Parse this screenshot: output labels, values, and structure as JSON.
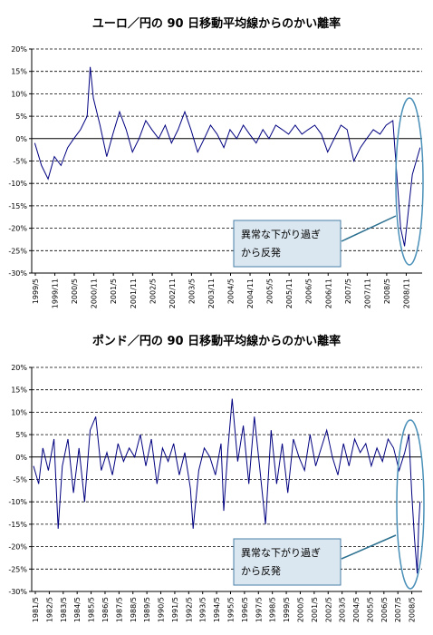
{
  "chart_data": [
    {
      "type": "line",
      "title": "ユーロ／円の 90 日移動平均線からのかい離率",
      "ylim": [
        -30,
        20
      ],
      "y_ticks": [
        20,
        15,
        10,
        5,
        0,
        -5,
        -10,
        -15,
        -20,
        -25,
        -30
      ],
      "y_tick_labels": [
        "20%",
        "15%",
        "10%",
        "5%",
        "0%",
        "-5%",
        "-10%",
        "-15%",
        "-20%",
        "-25%",
        "-30%"
      ],
      "grid": "horizontal dashed",
      "line_color": "#000080",
      "x_tick_labels": [
        "1999/5",
        "1999/11",
        "2000/5",
        "2000/11",
        "2001/5",
        "2001/11",
        "2002/5",
        "2002/11",
        "2003/5",
        "2003/11",
        "2004/5",
        "2004/11",
        "2005/5",
        "2005/11",
        "2006/5",
        "2006/11",
        "2007/5",
        "2007/11",
        "2008/5",
        "2008/11"
      ],
      "x": [
        1999.33,
        1999.5,
        1999.67,
        1999.83,
        2000.0,
        2000.17,
        2000.33,
        2000.5,
        2000.67,
        2000.75,
        2000.83,
        2001.0,
        2001.17,
        2001.33,
        2001.5,
        2001.67,
        2001.83,
        2002.0,
        2002.17,
        2002.33,
        2002.5,
        2002.67,
        2002.83,
        2003.0,
        2003.17,
        2003.33,
        2003.5,
        2003.67,
        2003.83,
        2004.0,
        2004.17,
        2004.33,
        2004.5,
        2004.67,
        2004.83,
        2005.0,
        2005.17,
        2005.33,
        2005.5,
        2005.67,
        2005.83,
        2006.0,
        2006.17,
        2006.33,
        2006.5,
        2006.67,
        2006.83,
        2007.0,
        2007.17,
        2007.33,
        2007.5,
        2007.67,
        2007.83,
        2008.0,
        2008.17,
        2008.33,
        2008.5,
        2008.6,
        2008.7,
        2008.8,
        2008.9,
        2009.0,
        2009.1,
        2009.2
      ],
      "y": [
        -1,
        -6,
        -9,
        -4,
        -6,
        -2,
        0,
        2,
        5,
        16,
        9,
        3,
        -4,
        1,
        6,
        2,
        -3,
        0,
        4,
        2,
        0,
        3,
        -1,
        2,
        6,
        2,
        -3,
        0,
        3,
        1,
        -2,
        2,
        0,
        3,
        1,
        -1,
        2,
        0,
        3,
        2,
        1,
        3,
        1,
        2,
        3,
        1,
        -3,
        0,
        3,
        2,
        -5,
        -2,
        0,
        2,
        1,
        3,
        4,
        -8,
        -20,
        -24,
        -16,
        -8,
        -5,
        -2
      ],
      "callout": "異常な下がり過ぎ\nから反発"
    },
    {
      "type": "line",
      "title": "ポンド／円の 90 日移動平均線からのかい離率",
      "ylim": [
        -30,
        20
      ],
      "y_ticks": [
        20,
        15,
        10,
        5,
        0,
        -5,
        -10,
        -15,
        -20,
        -25,
        -30
      ],
      "y_tick_labels": [
        "20%",
        "15%",
        "10%",
        "5%",
        "0%",
        "-5%",
        "-10%",
        "-15%",
        "-20%",
        "-25%",
        "-30%"
      ],
      "grid": "horizontal dashed",
      "line_color": "#000080",
      "x_tick_labels": [
        "1981/5",
        "1982/5",
        "1983/5",
        "1984/5",
        "1985/5",
        "1986/5",
        "1987/5",
        "1988/5",
        "1989/5",
        "1990/5",
        "1991/5",
        "1992/5",
        "1993/5",
        "1994/5",
        "1995/5",
        "1996/5",
        "1997/5",
        "1998/5",
        "1999/5",
        "2000/5",
        "2001/5",
        "2002/5",
        "2003/5",
        "2004/5",
        "2005/5",
        "2006/5",
        "2007/5",
        "2008/5"
      ],
      "x": [
        1981.33,
        1981.7,
        1982.0,
        1982.4,
        1982.8,
        1983.1,
        1983.4,
        1983.8,
        1984.2,
        1984.6,
        1985.0,
        1985.4,
        1985.8,
        1986.2,
        1986.6,
        1987.0,
        1987.4,
        1987.8,
        1988.2,
        1988.6,
        1989.0,
        1989.4,
        1989.8,
        1990.2,
        1990.6,
        1991.0,
        1991.4,
        1991.8,
        1992.2,
        1992.6,
        1992.8,
        1993.2,
        1993.6,
        1994.0,
        1994.4,
        1994.8,
        1995.0,
        1995.3,
        1995.6,
        1996.0,
        1996.4,
        1996.8,
        1997.2,
        1997.6,
        1998.0,
        1998.4,
        1998.8,
        1999.2,
        1999.6,
        2000.0,
        2000.4,
        2000.8,
        2001.2,
        2001.6,
        2002.0,
        2002.4,
        2002.8,
        2003.2,
        2003.6,
        2004.0,
        2004.4,
        2004.8,
        2005.2,
        2005.6,
        2006.0,
        2006.4,
        2006.8,
        2007.2,
        2007.6,
        2008.0,
        2008.3,
        2008.5,
        2008.7,
        2008.9,
        2009.0,
        2009.1
      ],
      "y": [
        -2,
        -6,
        2,
        -3,
        4,
        -16,
        -2,
        4,
        -8,
        2,
        -10,
        6,
        9,
        -3,
        1,
        -4,
        3,
        -1,
        2,
        0,
        5,
        -2,
        4,
        -6,
        2,
        -1,
        3,
        -4,
        1,
        -7,
        -16,
        -3,
        2,
        0,
        -4,
        3,
        -12,
        2,
        13,
        -1,
        7,
        -6,
        9,
        -3,
        -15,
        6,
        -6,
        3,
        -8,
        4,
        0,
        -3,
        5,
        -2,
        2,
        6,
        0,
        -4,
        3,
        -2,
        4,
        1,
        3,
        -2,
        2,
        -1,
        4,
        2,
        -3,
        1,
        5,
        -8,
        -18,
        -26,
        -15,
        -10
      ],
      "callout": "異常な下がり過ぎ\nから反発"
    }
  ]
}
